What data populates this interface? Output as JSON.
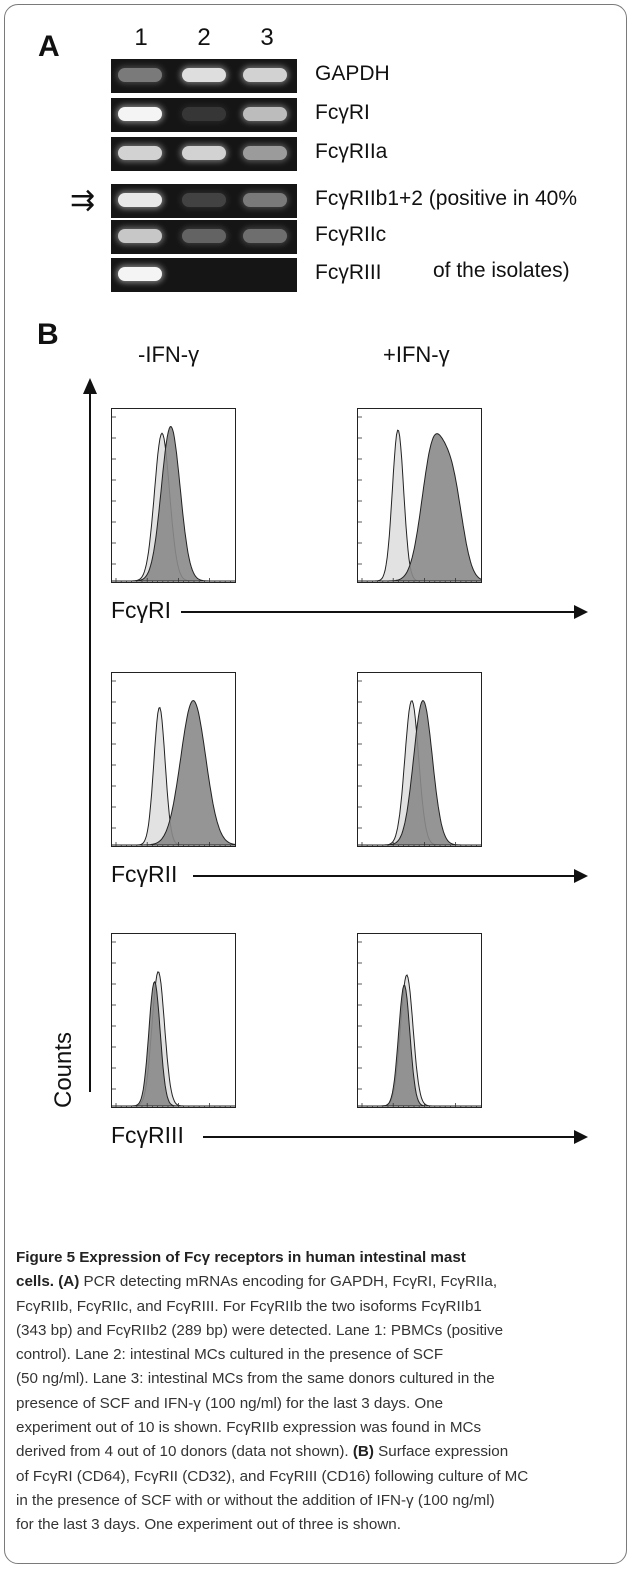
{
  "panel_a": {
    "letter": "A",
    "lanes": [
      "1",
      "2",
      "3"
    ],
    "rows": [
      {
        "label": "GAPDH",
        "bands": [
          0.45,
          0.9,
          0.85
        ]
      },
      {
        "label": "FcγRI",
        "bands": [
          1.0,
          0.15,
          0.75
        ]
      },
      {
        "label": "FcγRIIa",
        "bands": [
          0.85,
          0.85,
          0.6
        ]
      },
      {
        "label": "FcγRIIb1+2 (positive in 40%",
        "bands": [
          0.95,
          0.2,
          0.45
        ]
      },
      {
        "label": "FcγRIIc",
        "bands": [
          0.8,
          0.35,
          0.4
        ]
      },
      {
        "label": "FcγRIII",
        "bands": [
          1.0,
          0.0,
          0.0
        ]
      }
    ],
    "label_continuation": "of the isolates)",
    "arrow_glyph": "⇉"
  },
  "panel_b": {
    "letter": "B",
    "conditions": [
      "-IFN-γ",
      "+IFN-γ"
    ],
    "y_axis_label": "Counts",
    "rows": [
      {
        "x_axis_label": "FcγRI"
      },
      {
        "x_axis_label": "FcγRII"
      },
      {
        "x_axis_label": "FcγRIII"
      }
    ]
  },
  "caption": {
    "title": "Figure 5 Expression of Fcγ receptors in human intestinal mast",
    "lines": [
      [
        {
          "b": true,
          "t": "cells. "
        },
        {
          "b": true,
          "t": "(A)"
        },
        {
          "b": false,
          "t": " PCR detecting mRNAs encoding for GAPDH, FcγRI, FcγRIIa,"
        }
      ],
      [
        {
          "b": false,
          "t": "FcγRIIb, FcγRIIc, and FcγRIII. For FcγRIIb the two isoforms FcγRIIb1"
        }
      ],
      [
        {
          "b": false,
          "t": "(343 bp) and FcγRIIb2 (289 bp) were detected. Lane 1: PBMCs (positive"
        }
      ],
      [
        {
          "b": false,
          "t": "control). Lane 2: intestinal MCs cultured in the presence of SCF"
        }
      ],
      [
        {
          "b": false,
          "t": "(50 ng/ml). Lane 3: intestinal MCs from the same donors cultured in the"
        }
      ],
      [
        {
          "b": false,
          "t": "presence of SCF and IFN-γ (100 ng/ml) for the last 3 days. One"
        }
      ],
      [
        {
          "b": false,
          "t": "experiment out of 10 is shown. FcγRIIb expression was found in MCs"
        }
      ],
      [
        {
          "b": false,
          "t": "derived from 4 out of 10 donors (data not shown). "
        },
        {
          "b": true,
          "t": "(B)"
        },
        {
          "b": false,
          "t": " Surface expression"
        }
      ],
      [
        {
          "b": false,
          "t": "of FcγRI (CD64), FcγRII (CD32), and FcγRIII (CD16) following culture of MC"
        }
      ],
      [
        {
          "b": false,
          "t": "in the presence of SCF with or without the addition of IFN-γ (100 ng/ml)"
        }
      ],
      [
        {
          "b": false,
          "t": "for the last 3 days. One experiment out of three is shown."
        }
      ]
    ]
  }
}
